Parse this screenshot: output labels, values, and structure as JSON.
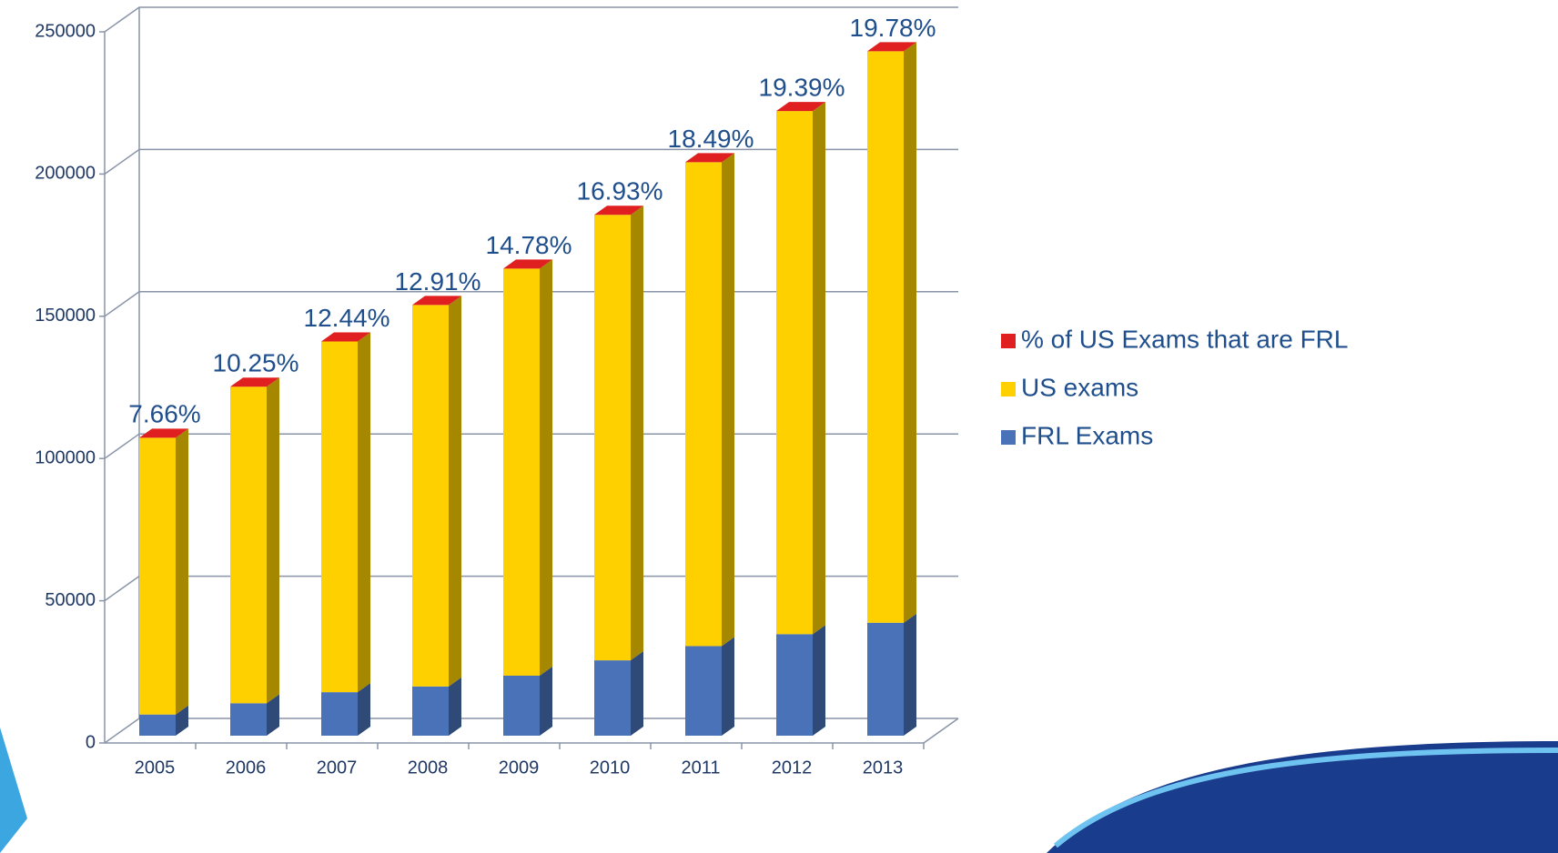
{
  "chart_data": {
    "type": "bar3d_stacked",
    "categories": [
      "2005",
      "2006",
      "2007",
      "2008",
      "2009",
      "2010",
      "2011",
      "2012",
      "2013"
    ],
    "series": [
      {
        "name": "FRL Exams",
        "color": "#4a72b8",
        "values": [
          7450,
          11400,
          15300,
          17300,
          21100,
          26500,
          31500,
          35700,
          39700
        ]
      },
      {
        "name": "US exams",
        "color": "#ffd000",
        "values": [
          97300,
          111300,
          123300,
          134100,
          143100,
          156600,
          170100,
          183900,
          200900
        ]
      },
      {
        "name": "% of US Exams that are FRL",
        "color": "#e02020",
        "values": [
          7.66,
          10.25,
          12.44,
          12.91,
          14.78,
          16.93,
          18.49,
          19.39,
          19.78
        ],
        "value_labels": [
          "7.66%",
          "10.25%",
          "12.44%",
          "12.91%",
          "14.78%",
          "16.93%",
          "18.49%",
          "19.39%",
          "19.78%"
        ]
      }
    ],
    "ylim": [
      0,
      250000
    ],
    "yticks": [
      0,
      50000,
      100000,
      150000,
      200000,
      250000
    ],
    "grid": true,
    "legend": "right"
  }
}
